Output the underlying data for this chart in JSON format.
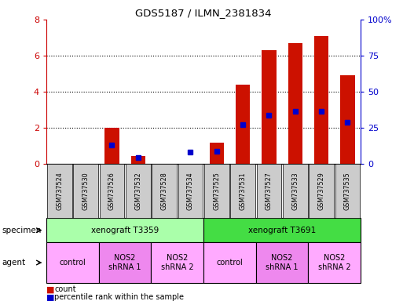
{
  "title": "GDS5187 / ILMN_2381834",
  "categories": [
    "GSM737524",
    "GSM737530",
    "GSM737526",
    "GSM737532",
    "GSM737528",
    "GSM737534",
    "GSM737525",
    "GSM737531",
    "GSM737527",
    "GSM737533",
    "GSM737529",
    "GSM737535"
  ],
  "red_values": [
    0.0,
    0.0,
    2.0,
    0.45,
    0.0,
    0.0,
    1.2,
    4.4,
    6.3,
    6.7,
    7.1,
    4.9
  ],
  "blue_values": [
    null,
    null,
    1.05,
    0.35,
    null,
    0.65,
    0.7,
    2.2,
    2.7,
    2.9,
    2.9,
    2.3
  ],
  "ylim_left": [
    0,
    8
  ],
  "ylim_right": [
    0,
    100
  ],
  "yticks_left": [
    0,
    2,
    4,
    6,
    8
  ],
  "yticks_right": [
    0,
    25,
    50,
    75,
    100
  ],
  "left_tick_color": "#cc0000",
  "right_tick_color": "#0000cc",
  "bar_color": "#cc1100",
  "dot_color": "#0000cc",
  "specimen_groups": [
    {
      "label": "xenograft T3359",
      "start": 0,
      "end": 6,
      "color": "#aaffaa"
    },
    {
      "label": "xenograft T3691",
      "start": 6,
      "end": 12,
      "color": "#44dd44"
    }
  ],
  "agent_groups": [
    {
      "label": "control",
      "start": 0,
      "end": 2,
      "color": "#ffaaff"
    },
    {
      "label": "NOS2\nshRNA 1",
      "start": 2,
      "end": 4,
      "color": "#ee88ee"
    },
    {
      "label": "NOS2\nshRNA 2",
      "start": 4,
      "end": 6,
      "color": "#ffaaff"
    },
    {
      "label": "control",
      "start": 6,
      "end": 8,
      "color": "#ffaaff"
    },
    {
      "label": "NOS2\nshRNA 1",
      "start": 8,
      "end": 10,
      "color": "#ee88ee"
    },
    {
      "label": "NOS2\nshRNA 2",
      "start": 10,
      "end": 12,
      "color": "#ffaaff"
    }
  ],
  "legend_count_color": "#cc1100",
  "legend_percentile_color": "#0000cc",
  "tick_label_bg": "#cccccc",
  "figsize": [
    5.13,
    3.84
  ],
  "dpi": 100
}
